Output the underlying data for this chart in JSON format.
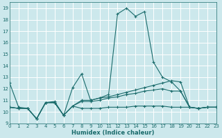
{
  "title": "",
  "xlabel": "Humidex (Indice chaleur)",
  "ylabel": "",
  "background_color": "#cce8ec",
  "grid_color": "#b8d8dc",
  "line_color": "#1a6b6b",
  "xlim": [
    0,
    23
  ],
  "ylim": [
    9,
    19.5
  ],
  "xticks": [
    0,
    1,
    2,
    3,
    4,
    5,
    6,
    7,
    8,
    9,
    10,
    11,
    12,
    13,
    14,
    15,
    16,
    17,
    18,
    19,
    20,
    21,
    22,
    23
  ],
  "yticks": [
    9,
    10,
    11,
    12,
    13,
    14,
    15,
    16,
    17,
    18,
    19
  ],
  "series": [
    [
      12.5,
      10.4,
      10.3,
      9.4,
      10.8,
      10.8,
      9.7,
      12.1,
      13.3,
      11.0,
      11.2,
      11.5,
      18.5,
      19.0,
      18.3,
      18.7,
      14.3,
      13.0,
      12.6,
      11.8,
      10.4,
      10.3,
      10.4,
      10.4
    ],
    [
      10.4,
      10.3,
      10.3,
      9.4,
      10.8,
      10.9,
      9.7,
      10.5,
      11.0,
      11.0,
      11.2,
      11.3,
      11.5,
      11.7,
      11.9,
      12.1,
      12.3,
      12.5,
      12.7,
      12.6,
      10.4,
      10.3,
      10.4,
      10.4
    ],
    [
      10.4,
      10.3,
      10.3,
      9.4,
      10.8,
      10.8,
      9.7,
      10.5,
      10.9,
      10.9,
      11.0,
      11.2,
      11.3,
      11.5,
      11.6,
      11.8,
      11.9,
      12.0,
      11.8,
      11.8,
      10.4,
      10.3,
      10.4,
      10.4
    ],
    [
      10.4,
      10.3,
      10.3,
      9.4,
      10.8,
      10.8,
      9.7,
      10.5,
      10.3,
      10.3,
      10.3,
      10.4,
      10.4,
      10.4,
      10.5,
      10.5,
      10.5,
      10.5,
      10.4,
      10.4,
      10.4,
      10.3,
      10.4,
      10.4
    ]
  ]
}
